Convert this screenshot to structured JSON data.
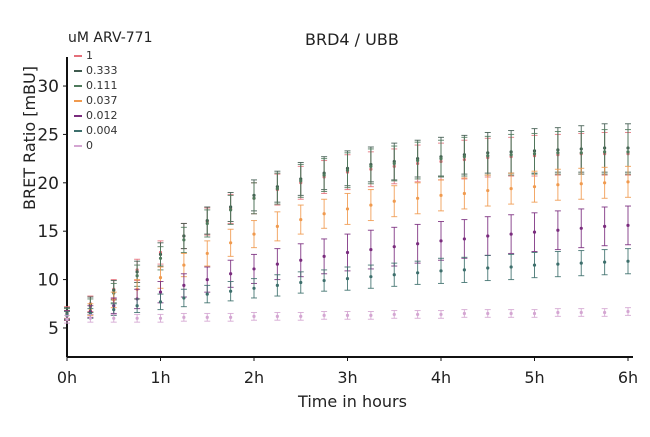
{
  "chart_data": {
    "type": "line",
    "title": "BRD4 / UBB",
    "xlabel": "Time in hours",
    "ylabel": "BRET Ratio [mBU]",
    "legend_title": "uM ARV-771",
    "legend_position": "top-left",
    "xlim": [
      0,
      6
    ],
    "ylim": [
      2,
      33
    ],
    "x_ticks": [
      0,
      1,
      2,
      3,
      4,
      5,
      6
    ],
    "x_tick_labels": [
      "0h",
      "1h",
      "2h",
      "3h",
      "4h",
      "5h",
      "6h"
    ],
    "y_ticks": [
      5,
      10,
      15,
      20,
      25,
      30
    ],
    "y_tick_labels": [
      "5",
      "10",
      "15",
      "20",
      "25",
      "30"
    ],
    "grid": false,
    "x": [
      0,
      0.25,
      0.5,
      0.75,
      1,
      1.25,
      1.5,
      1.75,
      2,
      2.25,
      2.5,
      2.75,
      3,
      3.25,
      3.5,
      3.75,
      4,
      4.25,
      4.5,
      4.75,
      5,
      5.25,
      5.5,
      5.75,
      6
    ],
    "series": [
      {
        "name": "1",
        "color": "#e46f7a",
        "values": [
          6.6,
          7.5,
          9.0,
          11.0,
          12.8,
          14.5,
          16.0,
          17.3,
          18.4,
          19.3,
          20.0,
          20.6,
          21.1,
          21.4,
          21.7,
          22.0,
          22.2,
          22.4,
          22.6,
          22.7,
          22.8,
          22.9,
          23.0,
          23.0,
          23.0
        ],
        "errors": [
          0.6,
          0.8,
          1.0,
          1.1,
          1.2,
          1.3,
          1.4,
          1.5,
          1.6,
          1.6,
          1.7,
          1.7,
          1.8,
          1.8,
          1.8,
          1.9,
          1.9,
          2.0,
          2.0,
          2.0,
          2.1,
          2.1,
          2.1,
          2.2,
          2.2
        ]
      },
      {
        "name": "0.333",
        "color": "#3f5a4e",
        "values": [
          6.5,
          7.4,
          8.9,
          10.8,
          12.6,
          14.5,
          16.1,
          17.5,
          18.7,
          19.6,
          20.4,
          21.0,
          21.5,
          21.9,
          22.2,
          22.5,
          22.7,
          22.9,
          23.1,
          23.2,
          23.3,
          23.4,
          23.5,
          23.6,
          23.6
        ],
        "errors": [
          0.6,
          0.8,
          1.0,
          1.1,
          1.2,
          1.3,
          1.4,
          1.5,
          1.6,
          1.6,
          1.7,
          1.7,
          1.8,
          1.8,
          1.9,
          1.9,
          2.0,
          2.0,
          2.1,
          2.2,
          2.3,
          2.3,
          2.4,
          2.5,
          2.5
        ]
      },
      {
        "name": "0.111",
        "color": "#4f7a5c",
        "values": [
          6.4,
          7.2,
          8.6,
          10.4,
          12.2,
          14.1,
          15.8,
          17.2,
          18.4,
          19.4,
          20.2,
          20.8,
          21.3,
          21.7,
          22.0,
          22.3,
          22.5,
          22.7,
          22.8,
          22.9,
          23.0,
          23.1,
          23.1,
          23.2,
          23.2
        ],
        "errors": [
          0.6,
          0.8,
          1.0,
          1.1,
          1.2,
          1.3,
          1.4,
          1.5,
          1.6,
          1.6,
          1.7,
          1.7,
          1.8,
          1.8,
          1.8,
          1.9,
          1.9,
          2.0,
          2.0,
          2.1,
          2.1,
          2.2,
          2.2,
          2.3,
          2.3
        ]
      },
      {
        "name": "0.037",
        "color": "#f09a4e",
        "values": [
          6.3,
          6.9,
          7.9,
          9.0,
          10.2,
          11.5,
          12.7,
          13.8,
          14.7,
          15.5,
          16.2,
          16.8,
          17.3,
          17.7,
          18.1,
          18.4,
          18.7,
          18.9,
          19.2,
          19.4,
          19.6,
          19.8,
          19.9,
          20.0,
          20.1
        ],
        "errors": [
          0.5,
          0.6,
          0.8,
          1.0,
          1.1,
          1.2,
          1.3,
          1.4,
          1.4,
          1.5,
          1.5,
          1.5,
          1.6,
          1.6,
          1.6,
          1.6,
          1.6,
          1.6,
          1.6,
          1.6,
          1.6,
          1.6,
          1.6,
          1.6,
          1.6
        ]
      },
      {
        "name": "0.012",
        "color": "#7a2c7e",
        "values": [
          6.3,
          6.7,
          7.3,
          8.0,
          8.7,
          9.4,
          10.0,
          10.6,
          11.1,
          11.6,
          12.0,
          12.4,
          12.8,
          13.1,
          13.4,
          13.7,
          14.0,
          14.2,
          14.5,
          14.7,
          14.9,
          15.1,
          15.3,
          15.5,
          15.6
        ],
        "errors": [
          0.5,
          0.6,
          0.8,
          1.0,
          1.1,
          1.2,
          1.3,
          1.4,
          1.5,
          1.6,
          1.7,
          1.8,
          1.9,
          2.0,
          2.0,
          2.0,
          2.0,
          2.0,
          2.0,
          2.0,
          2.0,
          2.0,
          2.0,
          2.0,
          2.0
        ]
      },
      {
        "name": "0.004",
        "color": "#3d6f6c",
        "values": [
          6.3,
          6.5,
          6.9,
          7.3,
          7.7,
          8.1,
          8.5,
          8.8,
          9.1,
          9.4,
          9.7,
          9.9,
          10.1,
          10.3,
          10.5,
          10.7,
          10.9,
          11.0,
          11.2,
          11.3,
          11.5,
          11.6,
          11.7,
          11.8,
          11.9
        ],
        "errors": [
          0.4,
          0.5,
          0.6,
          0.7,
          0.8,
          0.9,
          0.9,
          1.0,
          1.0,
          1.1,
          1.1,
          1.1,
          1.2,
          1.2,
          1.2,
          1.2,
          1.3,
          1.3,
          1.3,
          1.3,
          1.3,
          1.3,
          1.3,
          1.3,
          1.3
        ]
      },
      {
        "name": "0",
        "color": "#d4a6d2",
        "values": [
          5.9,
          6.0,
          6.0,
          6.0,
          6.0,
          6.1,
          6.1,
          6.1,
          6.2,
          6.2,
          6.2,
          6.3,
          6.3,
          6.3,
          6.4,
          6.4,
          6.4,
          6.5,
          6.5,
          6.5,
          6.5,
          6.6,
          6.6,
          6.6,
          6.7
        ],
        "errors": [
          0.4,
          0.4,
          0.4,
          0.4,
          0.4,
          0.4,
          0.4,
          0.4,
          0.4,
          0.4,
          0.4,
          0.4,
          0.4,
          0.4,
          0.4,
          0.4,
          0.4,
          0.4,
          0.4,
          0.4,
          0.4,
          0.4,
          0.4,
          0.4,
          0.4
        ]
      }
    ]
  }
}
